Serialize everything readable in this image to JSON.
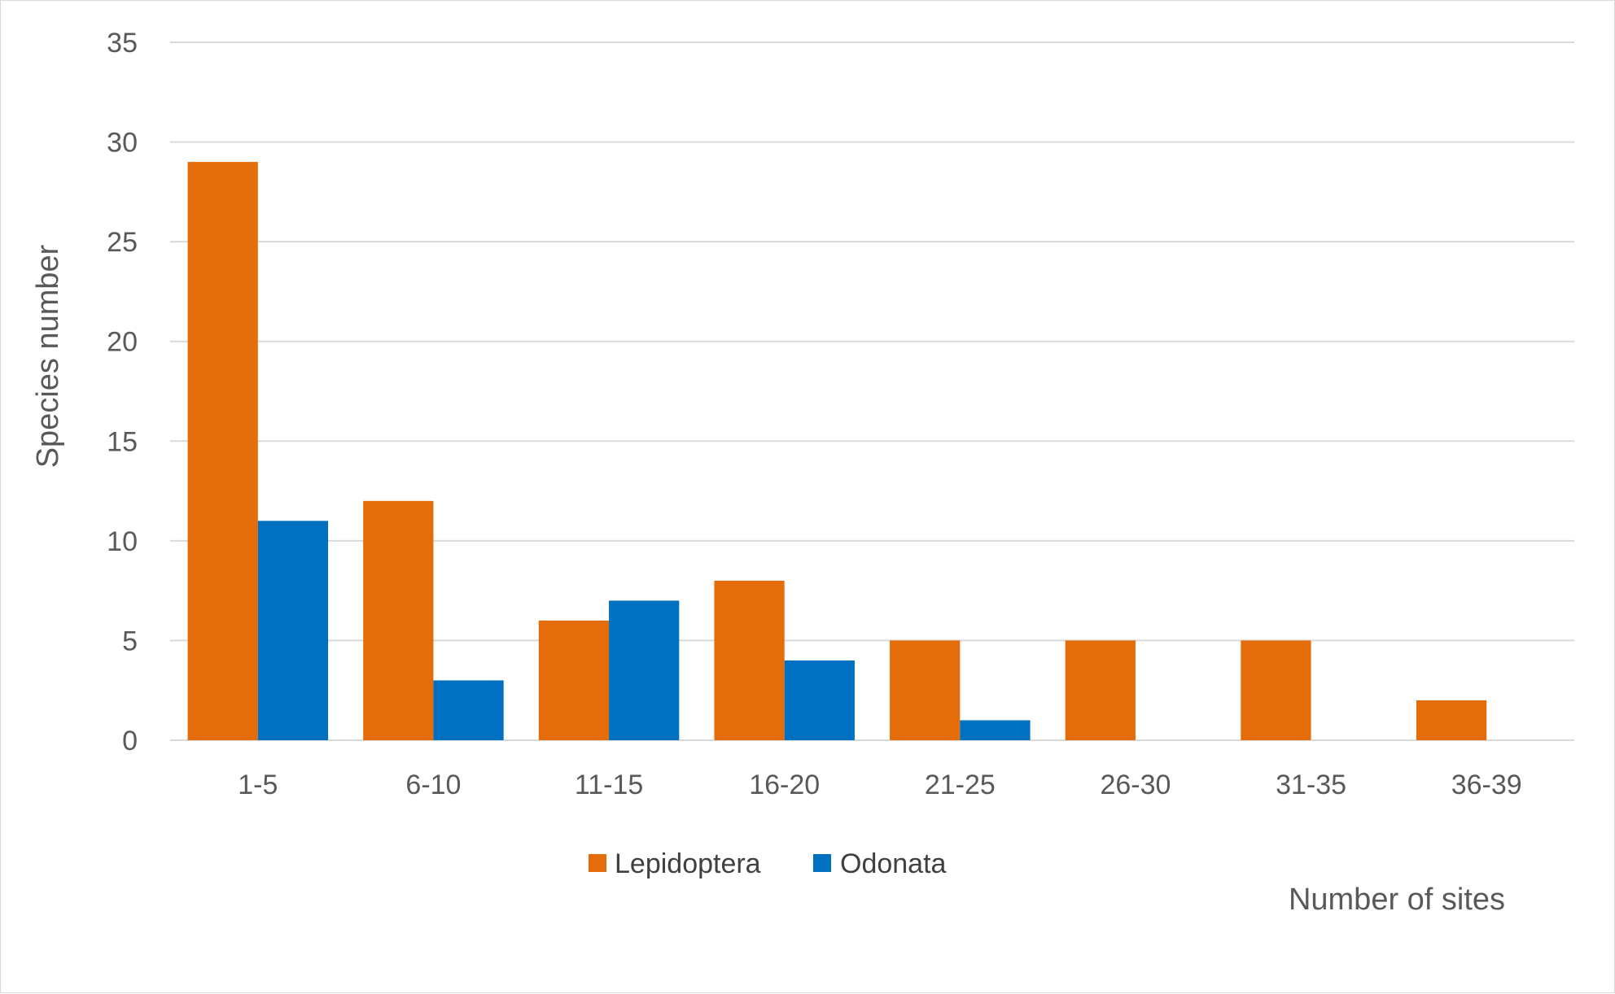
{
  "chart_data": {
    "type": "bar",
    "title": "",
    "xlabel": "Number of sites",
    "ylabel": "Species number",
    "categories": [
      "1-5",
      "6-10",
      "11-15",
      "16-20",
      "21-25",
      "26-30",
      "31-35",
      "36-39"
    ],
    "series": [
      {
        "name": "Lepidoptera",
        "color": "#E46C0A",
        "values": [
          29,
          12,
          6,
          8,
          5,
          5,
          5,
          2
        ]
      },
      {
        "name": "Odonata",
        "color": "#0070C0",
        "values": [
          11,
          3,
          7,
          4,
          1,
          0,
          0,
          0
        ]
      }
    ],
    "ylim": [
      0,
      35
    ],
    "yticks": [
      "0",
      "5",
      "10",
      "15",
      "20",
      "25",
      "30",
      "35"
    ],
    "grid": true,
    "gridColor": "#d9d9d9",
    "legend_position": "bottom-center"
  }
}
